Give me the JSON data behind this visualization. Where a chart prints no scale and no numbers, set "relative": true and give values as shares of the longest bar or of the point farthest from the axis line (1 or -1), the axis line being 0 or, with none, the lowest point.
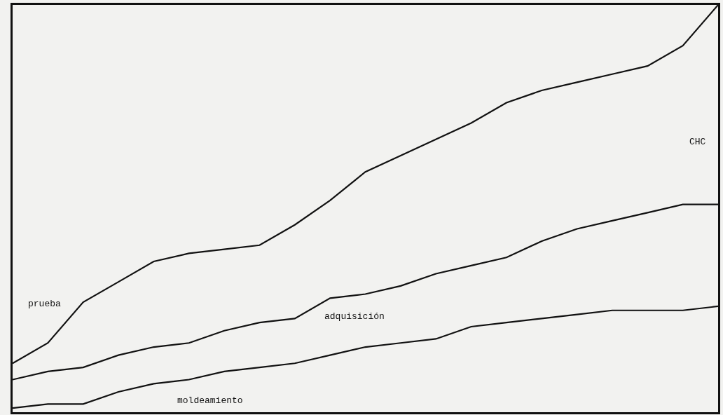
{
  "chart_data": {
    "type": "line",
    "relative": true,
    "grid": false,
    "legend": false,
    "marker": "none",
    "line_style": "solid",
    "categories": [
      null,
      null,
      null,
      null,
      null,
      null,
      null,
      null,
      null,
      null,
      null,
      null,
      null,
      null,
      null,
      null,
      null,
      null,
      null,
      null,
      null
    ],
    "annotations": [
      "CHC"
    ],
    "series": [
      {
        "name": "prueba",
        "color": "#111111",
        "values": [
          0.12,
          0.17,
          0.27,
          0.32,
          0.37,
          0.39,
          0.4,
          0.41,
          0.46,
          0.52,
          0.59,
          0.63,
          0.67,
          0.71,
          0.76,
          0.79,
          0.81,
          0.83,
          0.85,
          0.9,
          1
        ]
      },
      {
        "name": "adquisición",
        "color": "#111111",
        "values": [
          0.08,
          0.1,
          0.11,
          0.14,
          0.16,
          0.17,
          0.2,
          0.22,
          0.23,
          0.28,
          0.29,
          0.31,
          0.34,
          0.36,
          0.38,
          0.42,
          0.45,
          0.47,
          0.49,
          0.51,
          0.51
        ]
      },
      {
        "name": "moldeamiento",
        "color": "#111111",
        "values": [
          0.01,
          0.02,
          0.02,
          0.05,
          0.07,
          0.08,
          0.1,
          0.11,
          0.12,
          0.14,
          0.16,
          0.17,
          0.18,
          0.21,
          0.22,
          0.23,
          0.24,
          0.25,
          0.25,
          0.25,
          0.26
        ]
      }
    ]
  }
}
